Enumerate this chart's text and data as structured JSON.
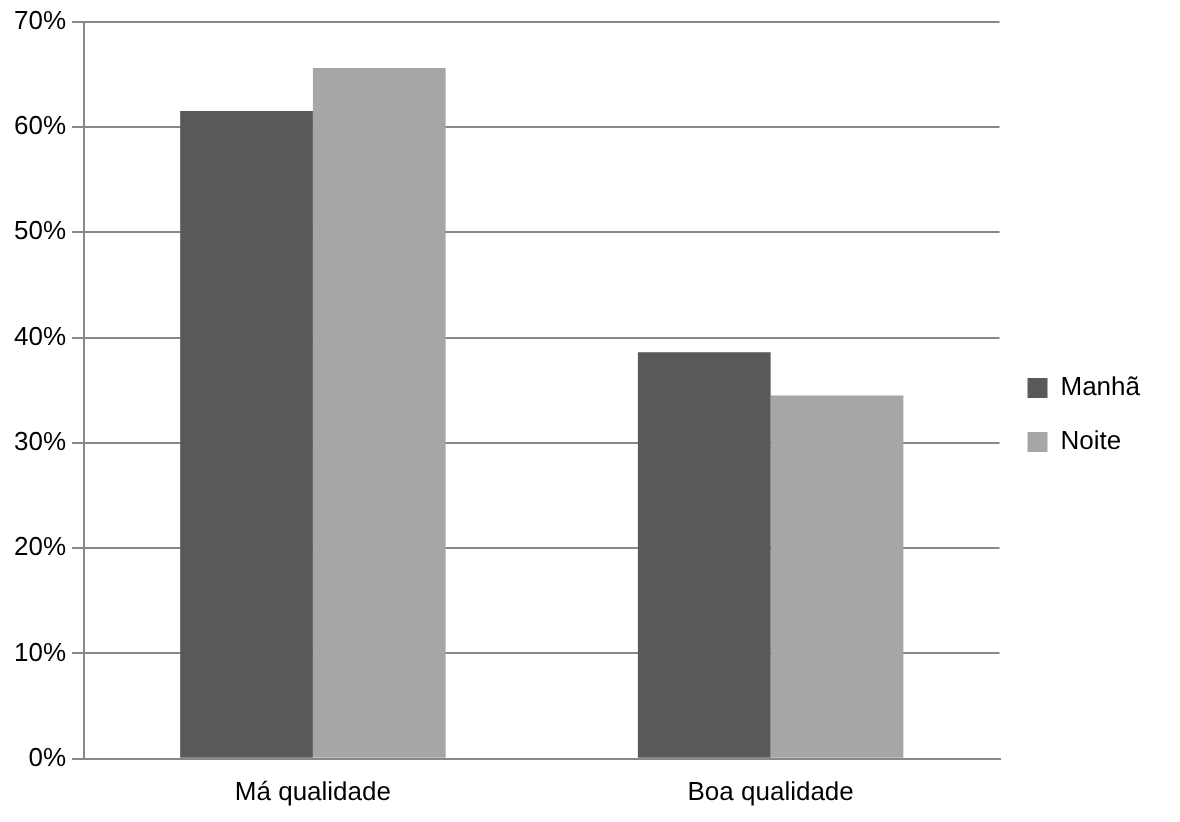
{
  "chart_data": {
    "type": "bar",
    "categories": [
      "Má qualidade",
      "Boa qualidade"
    ],
    "series": [
      {
        "name": "Manhã",
        "color": "#595959",
        "values": [
          61.5,
          38.6
        ]
      },
      {
        "name": "Noite",
        "color": "#a6a6a6",
        "values": [
          65.6,
          34.5
        ]
      }
    ],
    "ylim": [
      0,
      70
    ],
    "yticks": [
      {
        "value": 0,
        "label": "0%"
      },
      {
        "value": 10,
        "label": "10%"
      },
      {
        "value": 20,
        "label": "20%"
      },
      {
        "value": 30,
        "label": "30%"
      },
      {
        "value": 40,
        "label": "40%"
      },
      {
        "value": 50,
        "label": "50%"
      },
      {
        "value": 60,
        "label": "60%"
      },
      {
        "value": 70,
        "label": "70%"
      }
    ],
    "grid": "y",
    "legend": "right"
  }
}
